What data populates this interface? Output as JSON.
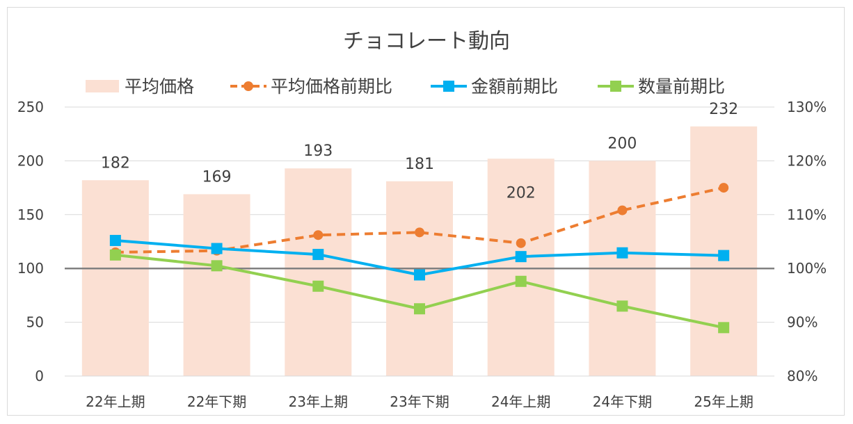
{
  "chart_data": {
    "type": "bar",
    "title": "チョコレート動向",
    "categories": [
      "22年上期",
      "22年下期",
      "23年上期",
      "23年下期",
      "24年上期",
      "24年下期",
      "25年上期"
    ],
    "bar_series": {
      "name": "平均価格",
      "values": [
        182,
        169,
        193,
        181,
        202,
        200,
        232
      ],
      "data_labels": [
        "182",
        "169",
        "193",
        "181",
        "202",
        "200",
        "232"
      ],
      "color": "#fbe0d3"
    },
    "line_series": [
      {
        "name": "平均価格前期比",
        "values": [
          103,
          103.3,
          106.2,
          106.7,
          104.7,
          110.8,
          115
        ],
        "color": "#ed7d31",
        "marker": "circle",
        "dash": "dashed"
      },
      {
        "name": "金額前期比",
        "values": [
          105.2,
          103.7,
          102.6,
          98.8,
          102.2,
          102.9,
          102.4
        ],
        "color": "#00b0f0",
        "marker": "square",
        "dash": "solid"
      },
      {
        "name": "数量前期比",
        "values": [
          102.5,
          100.5,
          96.7,
          92.5,
          97.6,
          93,
          89
        ],
        "color": "#92d050",
        "marker": "square",
        "dash": "solid"
      }
    ],
    "y_left": {
      "ylim": [
        0,
        250
      ],
      "ticks": [
        "0",
        "50",
        "100",
        "150",
        "200",
        "250"
      ],
      "tick_values": [
        0,
        50,
        100,
        150,
        200,
        250
      ]
    },
    "y_right": {
      "ylim": [
        80,
        130
      ],
      "ticks": [
        "80%",
        "90%",
        "100%",
        "110%",
        "120%",
        "130%"
      ],
      "tick_values": [
        80,
        90,
        100,
        110,
        120,
        130
      ]
    },
    "reference_line": {
      "value": 100,
      "axis": "right",
      "color": "#808080"
    },
    "grid": true,
    "legend_position": "top"
  }
}
